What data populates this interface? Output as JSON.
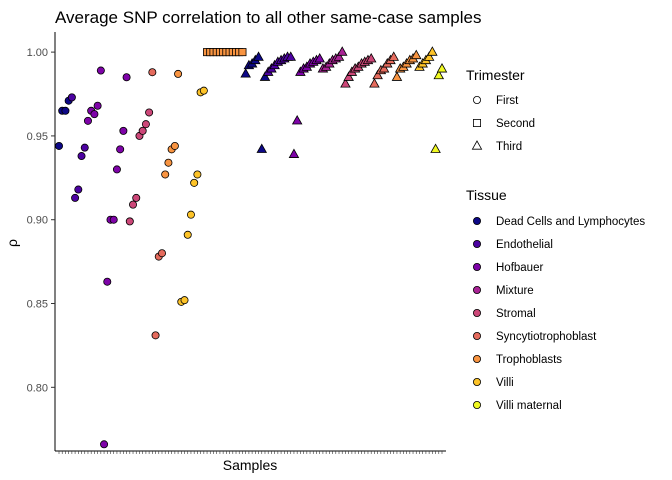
{
  "chart_data": {
    "type": "scatter",
    "title": "Average SNP correlation to all other same-case samples",
    "xlabel": "Samples",
    "ylabel": "ρ",
    "ylim": [
      0.762,
      1.012
    ],
    "yticks": [
      "0.80",
      "0.85",
      "0.90",
      "0.95",
      "1.00"
    ],
    "ytick_values": [
      0.8,
      0.85,
      0.9,
      0.95,
      1.0
    ],
    "x_ticks_labeled": false,
    "n_samples": 120,
    "grid": false,
    "legend_placement": "right",
    "legend_shape": {
      "title": "Trimester",
      "items": [
        {
          "label": "First",
          "shape": "circle"
        },
        {
          "label": "Second",
          "shape": "square"
        },
        {
          "label": "Third",
          "shape": "triangle"
        }
      ]
    },
    "legend_color": {
      "title": "Tissue",
      "items": [
        {
          "label": "Dead Cells and Lymphocytes",
          "color": "#0d0887"
        },
        {
          "label": "Endothelial",
          "color": "#4c02a1"
        },
        {
          "label": "Hofbauer",
          "color": "#7e03a8"
        },
        {
          "label": "Mixture",
          "color": "#a92395"
        },
        {
          "label": "Stromal",
          "color": "#cc4778"
        },
        {
          "label": "Syncytiotrophoblast",
          "color": "#e56b5d"
        },
        {
          "label": "Trophoblasts",
          "color": "#f89441"
        },
        {
          "label": "Villi",
          "color": "#fdc328"
        },
        {
          "label": "Villi maternal",
          "color": "#f0f921"
        }
      ]
    },
    "groups": [
      {
        "tissue": "Dead Cells and Lymphocytes",
        "trimester": "First",
        "x_start": 1,
        "values": [
          0.944,
          0.965,
          0.965,
          0.971
        ]
      },
      {
        "tissue": "Endothelial",
        "trimester": "First",
        "x_start": 5,
        "values": [
          0.973,
          0.913,
          0.918,
          0.938,
          0.943
        ]
      },
      {
        "tissue": "Hofbauer",
        "trimester": "First",
        "x_start": 10,
        "values": [
          0.959,
          0.965,
          0.963,
          0.968,
          0.989,
          0.766,
          0.863,
          0.9,
          0.9,
          0.93,
          0.942,
          0.953,
          0.985
        ]
      },
      {
        "tissue": "Stromal",
        "trimester": "First",
        "x_start": 23,
        "values": [
          0.899,
          0.909,
          0.913,
          0.95,
          0.953,
          0.957,
          0.964
        ]
      },
      {
        "tissue": "Syncytiotrophoblast",
        "trimester": "First",
        "x_start": 30,
        "values": [
          0.988,
          0.831,
          0.878,
          0.88
        ]
      },
      {
        "tissue": "Trophoblasts",
        "trimester": "First",
        "x_start": 34,
        "values": [
          0.927,
          0.934,
          0.942,
          0.944,
          0.987
        ]
      },
      {
        "tissue": "Villi",
        "trimester": "First",
        "x_start": 39,
        "values": [
          0.851,
          0.852,
          0.891,
          0.903,
          0.922,
          0.927,
          0.976,
          0.977
        ]
      },
      {
        "tissue": "Trophoblasts",
        "trimester": "Second",
        "x_start": 47,
        "values": [
          1.0,
          1.0,
          1.0,
          1.0,
          1.0,
          1.0,
          1.0,
          1.0,
          1.0,
          1.0,
          1.0,
          1.0
        ]
      },
      {
        "tissue": "Dead Cells and Lymphocytes",
        "trimester": "Third",
        "x_start": 59,
        "values": [
          0.987,
          0.992,
          0.993,
          0.995,
          0.997,
          0.942,
          0.985
        ]
      },
      {
        "tissue": "Endothelial",
        "trimester": "Third",
        "x_start": 66,
        "values": [
          0.988,
          0.99,
          0.992,
          0.994,
          0.995,
          0.996,
          0.997,
          0.997
        ]
      },
      {
        "tissue": "Hofbauer",
        "trimester": "Third",
        "x_start": 74,
        "values": [
          0.939,
          0.959,
          0.988,
          0.99,
          0.991,
          0.993,
          0.994,
          0.995,
          0.996
        ]
      },
      {
        "tissue": "Mixture",
        "trimester": "Third",
        "x_start": 83,
        "values": [
          0.99,
          0.991,
          0.993,
          0.995,
          0.996,
          0.997,
          1.0
        ]
      },
      {
        "tissue": "Stromal",
        "trimester": "Third",
        "x_start": 90,
        "values": [
          0.981,
          0.985,
          0.988,
          0.99,
          0.991,
          0.993,
          0.994,
          0.995,
          0.996
        ]
      },
      {
        "tissue": "Syncytiotrophoblast",
        "trimester": "Third",
        "x_start": 99,
        "values": [
          0.981,
          0.986,
          0.989,
          0.99,
          0.993,
          0.995,
          0.997
        ]
      },
      {
        "tissue": "Trophoblasts",
        "trimester": "Third",
        "x_start": 106,
        "values": [
          0.985,
          0.99,
          0.991,
          0.993,
          0.995,
          0.996,
          0.998
        ]
      },
      {
        "tissue": "Villi",
        "trimester": "Third",
        "x_start": 113,
        "values": [
          0.991,
          0.993,
          0.995,
          0.997,
          1.0
        ]
      },
      {
        "tissue": "Villi maternal",
        "trimester": "Third",
        "x_start": 118,
        "values": [
          0.942,
          0.986,
          0.99
        ]
      }
    ]
  }
}
